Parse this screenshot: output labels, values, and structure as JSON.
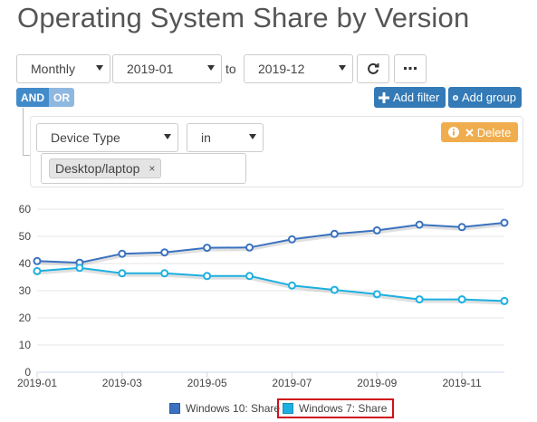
{
  "title": "Operating System Share by Version",
  "controls": {
    "period": "Monthly",
    "from": "2019-01",
    "to_label": "to",
    "to": "2019-12"
  },
  "filter": {
    "and_label": "AND",
    "or_label": "OR",
    "add_filter_label": "Add filter",
    "add_group_label": "Add group",
    "delete_label": "Delete",
    "field": "Device Type",
    "operator": "in",
    "value_tag": "Desktop/laptop",
    "tag_remove": "×"
  },
  "colors": {
    "accent_blue": "#337ab7",
    "delete_orange": "#f0ad4e",
    "series_win10": "#3a72c0",
    "series_win7": "#1cb0e0",
    "highlight_red": "#d0101a"
  },
  "icons": [
    "refresh-icon",
    "ellipsis-icon",
    "plus-icon",
    "plus-circle-icon",
    "info-icon",
    "times-icon"
  ],
  "chart_data": {
    "type": "line",
    "x": [
      "2019-01",
      "2019-02",
      "2019-03",
      "2019-04",
      "2019-05",
      "2019-06",
      "2019-07",
      "2019-08",
      "2019-09",
      "2019-10",
      "2019-11",
      "2019-12"
    ],
    "xticks": [
      "2019-01",
      "2019-03",
      "2019-05",
      "2019-07",
      "2019-09",
      "2019-11"
    ],
    "yticks": [
      0,
      10,
      20,
      30,
      40,
      50,
      60
    ],
    "ylim": [
      0,
      60
    ],
    "grid": "horizontal",
    "legend_position": "bottom",
    "series": [
      {
        "name": "Windows 10: Share",
        "values": [
          40.9,
          40.3,
          43.6,
          44.1,
          45.8,
          45.9,
          48.9,
          50.9,
          52.2,
          54.3,
          53.4,
          55.0
        ]
      },
      {
        "name": "Windows 7: Share",
        "values": [
          37.2,
          38.4,
          36.4,
          36.4,
          35.4,
          35.4,
          31.9,
          30.3,
          28.7,
          26.8,
          26.8,
          26.2
        ]
      }
    ],
    "highlighted_legend": "Windows 7: Share"
  }
}
